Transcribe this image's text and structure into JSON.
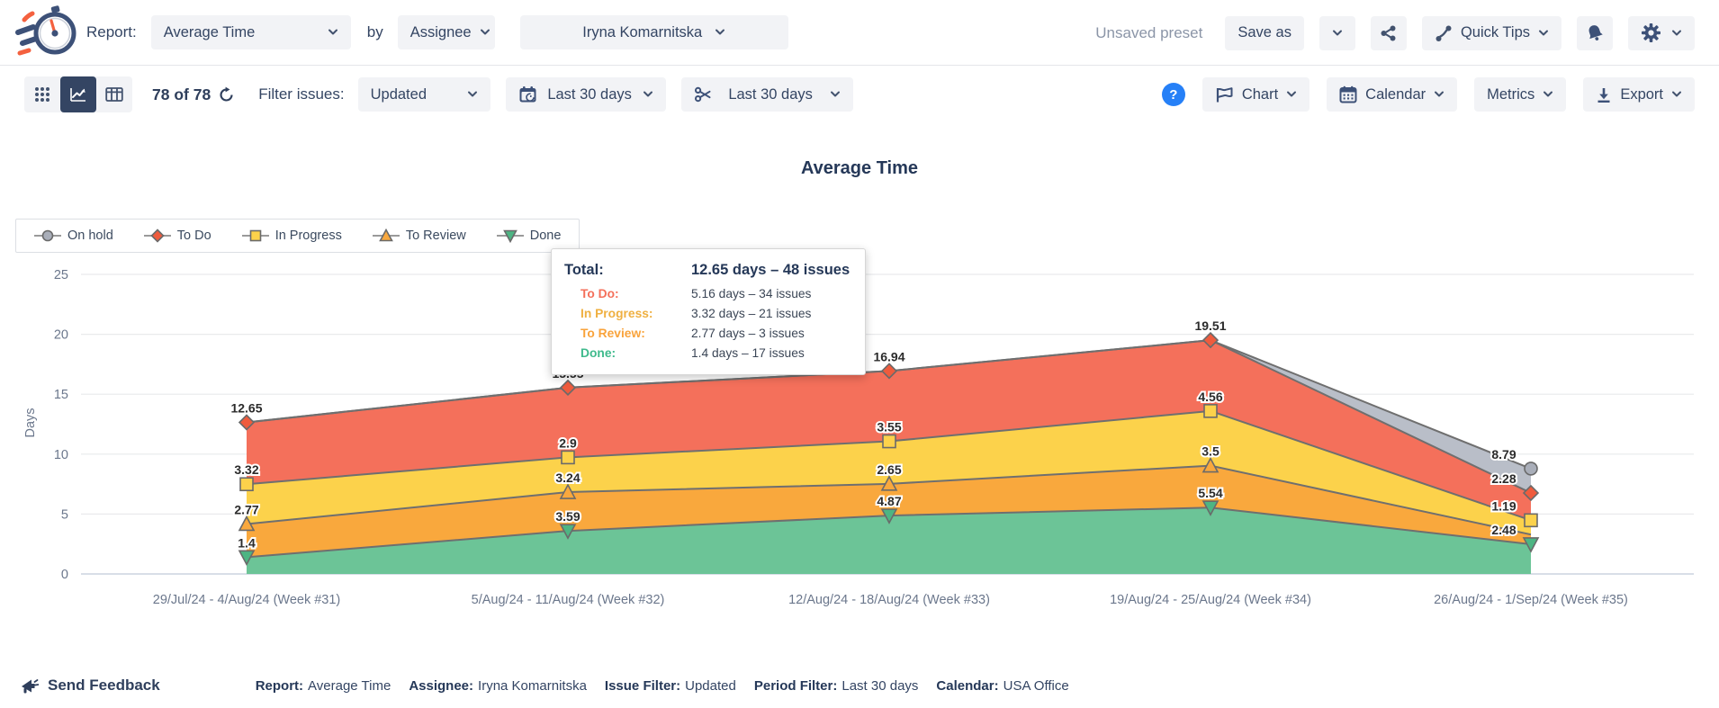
{
  "header": {
    "report_label": "Report:",
    "report_dropdown": "Average Time",
    "by_label": "by",
    "group_dropdown": "Assignee",
    "assignee_dropdown": "Iryna Komarnitska",
    "unsaved_preset": "Unsaved preset",
    "save_as_button": "Save as",
    "quick_tips_button": "Quick Tips"
  },
  "toolbar": {
    "issue_count": "78 of 78",
    "filter_issues_label": "Filter issues:",
    "issue_filter_dropdown": "Updated",
    "date_filter_dropdown": "Last 30 days",
    "period_filter_dropdown": "Last 30 days",
    "help_glyph": "?",
    "chart_button": "Chart",
    "calendar_button": "Calendar",
    "metrics_button": "Metrics",
    "export_button": "Export"
  },
  "chart": {
    "title": "Average Time"
  },
  "legend": {
    "items": [
      {
        "label": "On hold",
        "marker": "circle",
        "fill": "#a9aeb9"
      },
      {
        "label": "To Do",
        "marker": "diamond",
        "fill": "#ef5b3d"
      },
      {
        "label": "In Progress",
        "marker": "square",
        "fill": "#fcd24b"
      },
      {
        "label": "To Review",
        "marker": "triangle-up",
        "fill": "#f9a83d"
      },
      {
        "label": "Done",
        "marker": "triangle-down",
        "fill": "#4db583"
      }
    ]
  },
  "tooltip": {
    "total_label": "Total:",
    "total_value": "12.65 days – 48 issues",
    "rows": [
      {
        "label": "To Do:",
        "value": "5.16 days – 34 issues",
        "color": "#f4705b"
      },
      {
        "label": "In Progress:",
        "value": "3.32 days – 21 issues",
        "color": "#efb041"
      },
      {
        "label": "To Review:",
        "value": "2.77 days – 3 issues",
        "color": "#f9a33b"
      },
      {
        "label": "Done:",
        "value": "1.4 days – 17 issues",
        "color": "#3fba8c"
      }
    ]
  },
  "footer": {
    "send_feedback": "Send Feedback",
    "summary": [
      {
        "label": "Report:",
        "value": "Average Time"
      },
      {
        "label": "Assignee:",
        "value": "Iryna Komarnitska"
      },
      {
        "label": "Issue Filter:",
        "value": "Updated"
      },
      {
        "label": "Period Filter:",
        "value": "Last 30 days"
      },
      {
        "label": "Calendar:",
        "value": "USA Office"
      }
    ]
  },
  "chart_data": {
    "type": "area",
    "stacked": true,
    "title": "Average Time",
    "xlabel": "",
    "ylabel": "Days",
    "ylim": [
      0,
      25
    ],
    "yticks": [
      0,
      5,
      10,
      15,
      20,
      25
    ],
    "grid": true,
    "legend_position": "top-left",
    "categories": [
      "29/Jul/24 - 4/Aug/24 (Week #31)",
      "5/Aug/24 - 11/Aug/24 (Week #32)",
      "12/Aug/24 - 18/Aug/24 (Week #33)",
      "19/Aug/24 - 25/Aug/24 (Week #34)",
      "26/Aug/24 - 1/Sep/24 (Week #35)"
    ],
    "series": [
      {
        "name": "On hold",
        "color": "#b9bec8",
        "marker": "circle",
        "marker_fill": "#a9aeb9",
        "values": [
          0,
          0,
          0,
          0,
          2.03
        ],
        "point_labels": [
          "",
          "",
          "",
          "",
          "8.79"
        ]
      },
      {
        "name": "To Do",
        "color": "#f4705b",
        "marker": "diamond",
        "marker_fill": "#ef5b3d",
        "values": [
          5.16,
          5.82,
          5.87,
          5.91,
          2.28
        ],
        "point_labels": [
          "12.65",
          "15.55",
          "16.94",
          "19.51",
          "2.28"
        ]
      },
      {
        "name": "In Progress",
        "color": "#fcd24b",
        "marker": "square",
        "marker_fill": "#fcd24b",
        "values": [
          3.32,
          2.9,
          3.55,
          4.56,
          1.19
        ],
        "point_labels": [
          "3.32",
          "2.9",
          "3.55",
          "4.56",
          "1.19"
        ]
      },
      {
        "name": "To Review",
        "color": "#f9a83d",
        "marker": "triangle-up",
        "marker_fill": "#f9a83d",
        "values": [
          2.77,
          3.24,
          2.65,
          3.5,
          0.81
        ],
        "point_labels": [
          "2.77",
          "3.24",
          "2.65",
          "3.5",
          ""
        ]
      },
      {
        "name": "Done",
        "color": "#6cc497",
        "marker": "triangle-down",
        "marker_fill": "#4db583",
        "values": [
          1.4,
          3.59,
          4.87,
          5.54,
          2.48
        ],
        "point_labels": [
          "1.4",
          "3.59",
          "4.87",
          "5.54",
          "2.48"
        ]
      }
    ]
  }
}
